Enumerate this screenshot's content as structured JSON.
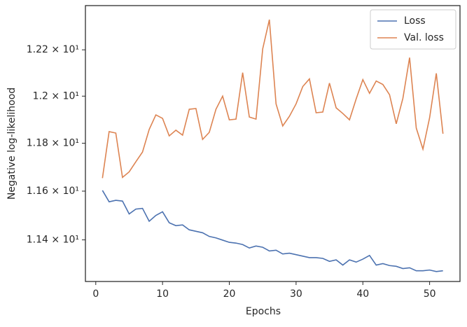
{
  "chart_data": {
    "type": "line",
    "xlabel": "Epochs",
    "ylabel": "Negative log-likelihood",
    "x": [
      1,
      2,
      3,
      4,
      5,
      6,
      7,
      8,
      9,
      10,
      11,
      12,
      13,
      14,
      15,
      16,
      17,
      18,
      19,
      20,
      21,
      22,
      23,
      24,
      25,
      26,
      27,
      28,
      29,
      30,
      31,
      32,
      33,
      34,
      35,
      36,
      37,
      38,
      39,
      40,
      41,
      42,
      43,
      44,
      45,
      46,
      47,
      48,
      49,
      50,
      51,
      52
    ],
    "series": [
      {
        "name": "Loss",
        "color": "#4c72b0",
        "values": [
          11.603,
          11.556,
          11.562,
          11.559,
          11.506,
          11.526,
          11.529,
          11.476,
          11.5,
          11.515,
          11.47,
          11.458,
          11.461,
          11.441,
          11.435,
          11.429,
          11.414,
          11.408,
          11.399,
          11.39,
          11.387,
          11.381,
          11.367,
          11.375,
          11.37,
          11.355,
          11.358,
          11.343,
          11.346,
          11.34,
          11.334,
          11.328,
          11.328,
          11.325,
          11.313,
          11.319,
          11.298,
          11.319,
          11.31,
          11.322,
          11.337,
          11.298,
          11.304,
          11.296,
          11.293,
          11.284,
          11.287,
          11.275,
          11.275,
          11.278,
          11.272,
          11.275
        ]
      },
      {
        "name": "Val. loss",
        "color": "#dd8452",
        "values": [
          11.654,
          11.849,
          11.843,
          11.657,
          11.68,
          11.722,
          11.763,
          11.858,
          11.92,
          11.905,
          11.831,
          11.855,
          11.834,
          11.944,
          11.947,
          11.816,
          11.846,
          11.944,
          12.0,
          11.899,
          11.902,
          12.101,
          11.911,
          11.902,
          12.204,
          12.332,
          11.967,
          11.873,
          11.914,
          11.967,
          12.041,
          12.074,
          11.929,
          11.932,
          12.056,
          11.95,
          11.926,
          11.899,
          11.988,
          12.071,
          12.012,
          12.065,
          12.05,
          12.006,
          11.882,
          11.991,
          12.166,
          11.864,
          11.775,
          11.908,
          12.098,
          11.84
        ]
      }
    ],
    "xlim": [
      -1.55,
      54.55
    ],
    "xticks": [
      0,
      10,
      20,
      30,
      40,
      50
    ],
    "ylim": [
      11.232,
      12.394
    ],
    "yscale": "log",
    "yticks": [
      {
        "value": 11.4,
        "label": "1.14 × 10¹"
      },
      {
        "value": 11.6,
        "label": "1.16 × 10¹"
      },
      {
        "value": 11.8,
        "label": "1.18 × 10¹"
      },
      {
        "value": 12.0,
        "label": "1.2 × 10¹"
      },
      {
        "value": 12.2,
        "label": "1.22 × 10¹"
      }
    ],
    "legend": "upper right"
  }
}
